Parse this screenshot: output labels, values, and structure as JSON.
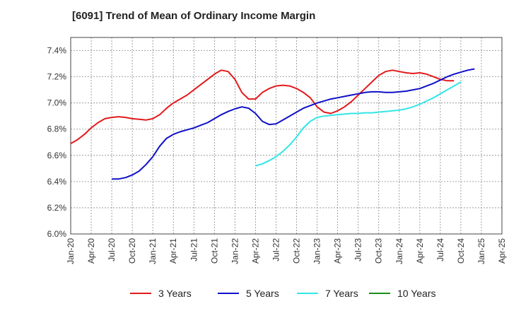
{
  "chart_data": {
    "type": "line",
    "title": "[6091]  Trend of Mean of Ordinary Income Margin",
    "xlabel": "",
    "ylabel": "",
    "ylim": [
      6.0,
      7.5
    ],
    "y_ticks": [
      "6.0%",
      "6.2%",
      "6.4%",
      "6.6%",
      "6.8%",
      "7.0%",
      "7.2%",
      "7.4%"
    ],
    "y_tick_values": [
      6.0,
      6.2,
      6.4,
      6.6,
      6.8,
      7.0,
      7.2,
      7.4
    ],
    "x_ticks": [
      "Jan-20",
      "Apr-20",
      "Jul-20",
      "Oct-20",
      "Jan-21",
      "Apr-21",
      "Jul-21",
      "Oct-21",
      "Jan-22",
      "Apr-22",
      "Jul-22",
      "Oct-22",
      "Jan-23",
      "Apr-23",
      "Jul-23",
      "Oct-23",
      "Jan-24",
      "Apr-24",
      "Jul-24",
      "Oct-24",
      "Jan-25",
      "Apr-25"
    ],
    "grid": true,
    "legend_position": "bottom",
    "series": [
      {
        "name": "3 Years",
        "color": "#e31a1c",
        "start_index": 0,
        "values": [
          6.69,
          6.72,
          6.76,
          6.81,
          6.85,
          6.88,
          6.89,
          6.895,
          6.89,
          6.88,
          6.875,
          6.87,
          6.88,
          6.91,
          6.96,
          7.0,
          7.03,
          7.06,
          7.1,
          7.14,
          7.18,
          7.22,
          7.25,
          7.24,
          7.18,
          7.08,
          7.03,
          7.03,
          7.08,
          7.11,
          7.13,
          7.135,
          7.13,
          7.11,
          7.08,
          7.04,
          6.97,
          6.93,
          6.92,
          6.94,
          6.97,
          7.01,
          7.06,
          7.11,
          7.16,
          7.21,
          7.24,
          7.25,
          7.24,
          7.23,
          7.225,
          7.23,
          7.22,
          7.2,
          7.18,
          7.17,
          7.17
        ]
      },
      {
        "name": "5 Years",
        "color": "#1010c8",
        "start_index": 6,
        "values": [
          6.42,
          6.42,
          6.43,
          6.45,
          6.48,
          6.53,
          6.59,
          6.67,
          6.73,
          6.76,
          6.78,
          6.795,
          6.81,
          6.83,
          6.85,
          6.88,
          6.91,
          6.935,
          6.955,
          6.97,
          6.96,
          6.92,
          6.86,
          6.835,
          6.84,
          6.87,
          6.9,
          6.93,
          6.96,
          6.98,
          7.0,
          7.015,
          7.03,
          7.04,
          7.05,
          7.06,
          7.07,
          7.08,
          7.085,
          7.085,
          7.08,
          7.08,
          7.085,
          7.09,
          7.1,
          7.11,
          7.13,
          7.15,
          7.175,
          7.2,
          7.22,
          7.235,
          7.25,
          7.26
        ]
      },
      {
        "name": "7 Years",
        "color": "#33e6e6",
        "start_index": 27,
        "values": [
          6.52,
          6.535,
          6.56,
          6.59,
          6.63,
          6.68,
          6.74,
          6.81,
          6.86,
          6.89,
          6.9,
          6.905,
          6.91,
          6.915,
          6.92,
          6.92,
          6.925,
          6.925,
          6.93,
          6.935,
          6.94,
          6.945,
          6.955,
          6.97,
          6.99,
          7.015,
          7.04,
          7.07,
          7.1,
          7.13,
          7.16
        ]
      },
      {
        "name": "10 Years",
        "color": "#1a8f1a",
        "start_index": 0,
        "values": []
      }
    ]
  }
}
